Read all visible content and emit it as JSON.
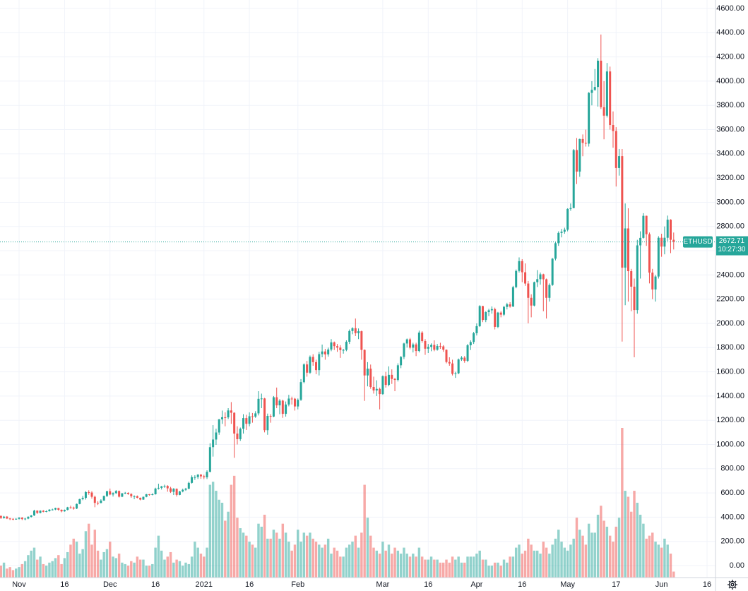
{
  "chart_data": {
    "type": "candlestick",
    "symbol": "ETHUSD",
    "last_price": 2672.71,
    "time_label": "10:27:30",
    "up_color": "#26a69a",
    "down_color": "#ef5350",
    "grid": true,
    "xlim": [
      -0.3,
      235.8
    ],
    "ylim": [
      -99,
      4670
    ],
    "xticks": [
      {
        "value": 6,
        "label": "Nov"
      },
      {
        "value": 21,
        "label": "16"
      },
      {
        "value": 36,
        "label": "Dec"
      },
      {
        "value": 51,
        "label": "16"
      },
      {
        "value": 67,
        "label": "2021"
      },
      {
        "value": 82,
        "label": "16"
      },
      {
        "value": 98,
        "label": "Feb"
      },
      {
        "value": 126,
        "label": "Mar"
      },
      {
        "value": 141,
        "label": "16"
      },
      {
        "value": 157,
        "label": "Apr"
      },
      {
        "value": 172,
        "label": "16"
      },
      {
        "value": 187,
        "label": "May"
      },
      {
        "value": 203,
        "label": "17"
      },
      {
        "value": 218,
        "label": "Jun"
      },
      {
        "value": 233,
        "label": "16"
      }
    ],
    "yticks": [
      {
        "value": 0,
        "label": "0.00"
      },
      {
        "value": 200,
        "label": "200.00"
      },
      {
        "value": 400,
        "label": "400.00"
      },
      {
        "value": 600,
        "label": "600.00"
      },
      {
        "value": 800,
        "label": "800.00"
      },
      {
        "value": 1000,
        "label": "1000.00"
      },
      {
        "value": 1200,
        "label": "1200.00"
      },
      {
        "value": 1400,
        "label": "1400.00"
      },
      {
        "value": 1600,
        "label": "1600.00"
      },
      {
        "value": 1800,
        "label": "1800.00"
      },
      {
        "value": 2000,
        "label": "2000.00"
      },
      {
        "value": 2200,
        "label": "2200.00"
      },
      {
        "value": 2400,
        "label": "2400.00"
      },
      {
        "value": 2600,
        "label": "2600.00"
      },
      {
        "value": 2800,
        "label": "2800.00"
      },
      {
        "value": 3000,
        "label": "3000.00"
      },
      {
        "value": 3200,
        "label": "3200.00"
      },
      {
        "value": 3400,
        "label": "3400.00"
      },
      {
        "value": 3600,
        "label": "3600.00"
      },
      {
        "value": 3800,
        "label": "3800.00"
      },
      {
        "value": 4000,
        "label": "4000.00"
      },
      {
        "value": 4200,
        "label": "4200.00"
      },
      {
        "value": 4400,
        "label": "4400.00"
      },
      {
        "value": 4600,
        "label": "4600.00"
      }
    ],
    "open": [
      410,
      393,
      404,
      389,
      386,
      383,
      386,
      396,
      384,
      388,
      402,
      414,
      454,
      435,
      453,
      444,
      449,
      462,
      463,
      475,
      461,
      448,
      460,
      481,
      479,
      471,
      509,
      549,
      559,
      607,
      603,
      568,
      518,
      517,
      537,
      575,
      614,
      587,
      598,
      616,
      569,
      596,
      601,
      591,
      573,
      573,
      560,
      545,
      568,
      589,
      585,
      589,
      636,
      642,
      654,
      658,
      638,
      609,
      634,
      584,
      612,
      626,
      635,
      683,
      730,
      731,
      751,
      737,
      729,
      774,
      978,
      1041,
      1099,
      1208,
      1225,
      1224,
      1281,
      1262,
      1090,
      1044,
      1130,
      1218,
      1171,
      1233,
      1230,
      1257,
      1377,
      1380,
      1118,
      1236,
      1230,
      1390,
      1323,
      1362,
      1253,
      1330,
      1379,
      1378,
      1314,
      1369,
      1515,
      1661,
      1593,
      1723,
      1680,
      1614,
      1746,
      1768,
      1744,
      1784,
      1843,
      1812,
      1800,
      1779,
      1781,
      1848,
      1937,
      1960,
      1919,
      1935,
      1781,
      1570,
      1626,
      1475,
      1446,
      1459,
      1416,
      1564,
      1492,
      1575,
      1541,
      1533,
      1654,
      1723,
      1834,
      1868,
      1799,
      1826,
      1772,
      1924,
      1854,
      1791,
      1806,
      1822,
      1782,
      1813,
      1810,
      1782,
      1681,
      1669,
      1583,
      1588,
      1702,
      1717,
      1691,
      1819,
      1846,
      1919,
      1977,
      2143,
      2028,
      2093,
      2108,
      2118,
      1971,
      2089,
      2072,
      2136,
      2157,
      2139,
      2299,
      2433,
      2514,
      2422,
      2329,
      2211,
      2147,
      2340,
      2365,
      2405,
      2364,
      2211,
      2317,
      2534,
      2662,
      2747,
      2757,
      2773,
      2945,
      2952,
      3431,
      3253,
      3522,
      3490,
      3484,
      3903,
      3928,
      3952,
      4169,
      3785,
      3715,
      4080,
      3638,
      3588,
      3283,
      3381,
      2460,
      2784,
      2431,
      2303,
      2110,
      2644,
      2706,
      2888,
      2736,
      2419,
      2280,
      2387,
      2707,
      2634,
      2707,
      2856,
      2690
    ],
    "high": [
      415,
      410,
      409,
      394,
      391,
      392,
      400,
      400,
      394,
      408,
      418,
      461,
      456,
      457,
      458,
      456,
      466,
      470,
      478,
      477,
      464,
      463,
      485,
      495,
      487,
      512,
      552,
      575,
      615,
      622,
      614,
      578,
      532,
      548,
      578,
      618,
      636,
      605,
      623,
      620,
      600,
      608,
      605,
      597,
      580,
      579,
      562,
      570,
      592,
      591,
      597,
      643,
      676,
      658,
      668,
      664,
      650,
      640,
      637,
      617,
      635,
      642,
      693,
      745,
      746,
      755,
      756,
      750,
      787,
      1010,
      1160,
      1130,
      1210,
      1280,
      1265,
      1300,
      1350,
      1265,
      1150,
      1140,
      1250,
      1245,
      1265,
      1260,
      1275,
      1440,
      1420,
      1385,
      1255,
      1250,
      1400,
      1470,
      1375,
      1370,
      1355,
      1410,
      1395,
      1385,
      1380,
      1540,
      1670,
      1690,
      1735,
      1745,
      1700,
      1765,
      1825,
      1790,
      1800,
      1870,
      1850,
      1830,
      1820,
      1790,
      1860,
      1950,
      1968,
      2040,
      1958,
      1940,
      1785,
      1680,
      1660,
      1560,
      1530,
      1470,
      1570,
      1600,
      1645,
      1620,
      1550,
      1670,
      1730,
      1840,
      1875,
      1880,
      1840,
      1840,
      1940,
      1935,
      1870,
      1830,
      1835,
      1860,
      1830,
      1840,
      1820,
      1785,
      1720,
      1700,
      1600,
      1710,
      1730,
      1730,
      1830,
      1860,
      1930,
      2000,
      2150,
      2145,
      2100,
      2120,
      2140,
      2130,
      2095,
      2100,
      2145,
      2170,
      2175,
      2310,
      2445,
      2545,
      2530,
      2495,
      2350,
      2240,
      2345,
      2440,
      2420,
      2410,
      2370,
      2330,
      2540,
      2670,
      2760,
      2780,
      2790,
      2950,
      2990,
      3440,
      3530,
      3525,
      3560,
      3600,
      3910,
      4000,
      4100,
      4190,
      4385,
      4000,
      4150,
      4120,
      3750,
      3620,
      3440,
      3440,
      2990,
      2950,
      2450,
      2370,
      2690,
      2760,
      2910,
      2890,
      2750,
      2450,
      2400,
      2720,
      2740,
      2800,
      2890,
      2860,
      2750
    ],
    "low": [
      385,
      388,
      384,
      376,
      374,
      379,
      380,
      376,
      374,
      383,
      397,
      410,
      427,
      431,
      440,
      440,
      446,
      455,
      458,
      453,
      440,
      445,
      456,
      470,
      462,
      467,
      506,
      540,
      545,
      585,
      553,
      482,
      500,
      514,
      535,
      566,
      581,
      570,
      592,
      562,
      565,
      590,
      585,
      560,
      548,
      555,
      539,
      543,
      564,
      577,
      580,
      586,
      628,
      628,
      642,
      610,
      600,
      583,
      570,
      581,
      605,
      617,
      630,
      677,
      708,
      715,
      716,
      714,
      715,
      770,
      900,
      997,
      1080,
      1170,
      1150,
      1210,
      1170,
      890,
      1000,
      1030,
      1090,
      1120,
      1150,
      1180,
      1220,
      1240,
      1300,
      1100,
      1080,
      1180,
      1225,
      1300,
      1250,
      1220,
      1230,
      1315,
      1330,
      1280,
      1290,
      1360,
      1505,
      1560,
      1583,
      1650,
      1580,
      1570,
      1720,
      1700,
      1725,
      1770,
      1780,
      1765,
      1715,
      1750,
      1770,
      1830,
      1910,
      1895,
      1870,
      1700,
      1360,
      1480,
      1460,
      1420,
      1400,
      1290,
      1410,
      1470,
      1480,
      1500,
      1440,
      1520,
      1630,
      1705,
      1800,
      1785,
      1760,
      1730,
      1760,
      1840,
      1740,
      1755,
      1770,
      1770,
      1775,
      1790,
      1765,
      1670,
      1650,
      1570,
      1550,
      1580,
      1690,
      1675,
      1680,
      1780,
      1830,
      1900,
      1970,
      2010,
      2010,
      2060,
      2080,
      1950,
      1960,
      2050,
      2060,
      2115,
      2130,
      2135,
      2290,
      2420,
      2340,
      2310,
      2000,
      2050,
      2140,
      2300,
      2320,
      2100,
      2040,
      2180,
      2310,
      2520,
      2640,
      2710,
      2740,
      2760,
      2930,
      2950,
      3150,
      3210,
      3380,
      3460,
      3460,
      3800,
      3920,
      3790,
      3770,
      3520,
      3700,
      3600,
      3450,
      3130,
      3220,
      1850,
      2150,
      2180,
      2100,
      1720,
      2080,
      2370,
      2700,
      2640,
      2330,
      2200,
      2180,
      2370,
      2550,
      2570,
      2680,
      2580,
      2610
    ],
    "close": [
      393,
      404,
      389,
      386,
      383,
      386,
      396,
      384,
      388,
      402,
      414,
      454,
      435,
      453,
      444,
      449,
      462,
      463,
      475,
      461,
      448,
      460,
      481,
      479,
      471,
      509,
      549,
      559,
      607,
      603,
      568,
      518,
      517,
      537,
      575,
      614,
      587,
      598,
      616,
      569,
      596,
      601,
      591,
      573,
      573,
      560,
      545,
      568,
      589,
      585,
      589,
      636,
      642,
      654,
      658,
      638,
      609,
      634,
      584,
      612,
      626,
      635,
      683,
      730,
      731,
      751,
      737,
      729,
      774,
      978,
      1041,
      1099,
      1208,
      1225,
      1224,
      1281,
      1262,
      1090,
      1044,
      1130,
      1218,
      1171,
      1233,
      1230,
      1257,
      1377,
      1380,
      1118,
      1236,
      1230,
      1390,
      1323,
      1362,
      1253,
      1330,
      1379,
      1378,
      1314,
      1369,
      1515,
      1661,
      1593,
      1723,
      1680,
      1614,
      1746,
      1768,
      1744,
      1784,
      1843,
      1812,
      1800,
      1779,
      1781,
      1848,
      1937,
      1960,
      1919,
      1935,
      1781,
      1570,
      1626,
      1475,
      1446,
      1459,
      1416,
      1564,
      1492,
      1575,
      1541,
      1533,
      1654,
      1723,
      1834,
      1868,
      1799,
      1826,
      1772,
      1924,
      1854,
      1791,
      1806,
      1822,
      1782,
      1813,
      1810,
      1782,
      1681,
      1669,
      1583,
      1588,
      1702,
      1717,
      1691,
      1819,
      1846,
      1919,
      1977,
      2143,
      2028,
      2093,
      2108,
      2118,
      1971,
      2089,
      2072,
      2136,
      2157,
      2139,
      2299,
      2433,
      2514,
      2422,
      2329,
      2211,
      2147,
      2340,
      2365,
      2405,
      2364,
      2211,
      2317,
      2534,
      2662,
      2747,
      2757,
      2773,
      2945,
      2952,
      3431,
      3253,
      3522,
      3490,
      3484,
      3903,
      3928,
      3952,
      4169,
      3785,
      3715,
      4080,
      3638,
      3588,
      3283,
      3381,
      2460,
      2784,
      2431,
      2303,
      2110,
      2644,
      2706,
      2888,
      2736,
      2419,
      2280,
      2387,
      2707,
      2634,
      2707,
      2856,
      2690,
      2672.71
    ],
    "volume": [
      8,
      10,
      6,
      7,
      5,
      6,
      7,
      9,
      11,
      15,
      18,
      20,
      12,
      14,
      9,
      8,
      10,
      11,
      13,
      15,
      9,
      13,
      17,
      22,
      26,
      24,
      16,
      19,
      31,
      36,
      22,
      32,
      18,
      12,
      17,
      19,
      24,
      14,
      13,
      16,
      10,
      9,
      8,
      11,
      10,
      14,
      12,
      12,
      8,
      8,
      9,
      20,
      28,
      18,
      12,
      14,
      17,
      10,
      12,
      11,
      8,
      10,
      9,
      14,
      24,
      20,
      16,
      14,
      20,
      62,
      64,
      58,
      52,
      50,
      38,
      44,
      62,
      68,
      40,
      33,
      30,
      28,
      24,
      22,
      20,
      36,
      34,
      42,
      26,
      26,
      32,
      30,
      26,
      36,
      30,
      24,
      18,
      22,
      32,
      24,
      30,
      28,
      30,
      26,
      24,
      22,
      20,
      22,
      26,
      16,
      20,
      18,
      14,
      14,
      20,
      22,
      24,
      28,
      20,
      30,
      62,
      40,
      28,
      20,
      18,
      16,
      24,
      18,
      22,
      16,
      20,
      18,
      16,
      20,
      16,
      14,
      16,
      14,
      20,
      14,
      12,
      12,
      14,
      12,
      12,
      10,
      10,
      12,
      10,
      14,
      12,
      14,
      10,
      10,
      14,
      14,
      14,
      16,
      18,
      12,
      12,
      8,
      8,
      10,
      10,
      8,
      12,
      10,
      14,
      14,
      20,
      22,
      16,
      18,
      26,
      22,
      18,
      18,
      16,
      24,
      20,
      16,
      22,
      26,
      32,
      24,
      20,
      18,
      22,
      26,
      40,
      32,
      28,
      22,
      36,
      30,
      30,
      42,
      48,
      38,
      34,
      28,
      24,
      34,
      40,
      100,
      58,
      54,
      44,
      58,
      50,
      42,
      36,
      26,
      28,
      30,
      24,
      22,
      20,
      26,
      22,
      16,
      4
    ]
  }
}
